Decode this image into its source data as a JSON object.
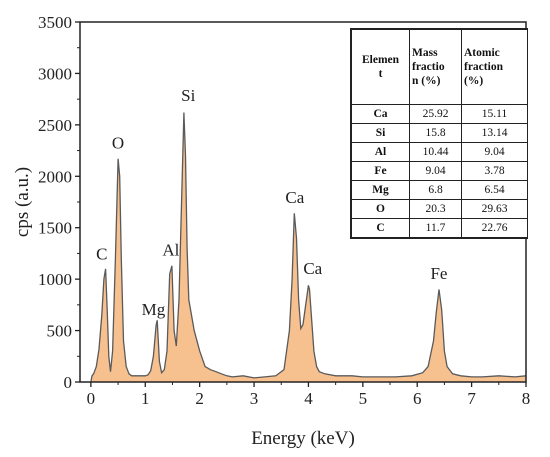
{
  "chart_data": {
    "type": "area",
    "title": "",
    "xlabel": "Energy (keV)",
    "ylabel": "cps (a.u.)",
    "xlim": [
      -0.2,
      8
    ],
    "ylim": [
      0,
      3500
    ],
    "x_ticks": [
      0,
      1,
      2,
      3,
      4,
      5,
      6,
      7,
      8
    ],
    "y_ticks": [
      0,
      500,
      1000,
      1500,
      2000,
      2500,
      3000,
      3500
    ],
    "fill_color": "#f7c08f",
    "line_color": "#5a5a5a",
    "spectrum": {
      "x": [
        0.0,
        0.02,
        0.05,
        0.1,
        0.15,
        0.2,
        0.24,
        0.27,
        0.3,
        0.33,
        0.36,
        0.4,
        0.45,
        0.5,
        0.53,
        0.56,
        0.6,
        0.65,
        0.7,
        0.75,
        0.8,
        0.85,
        0.9,
        0.95,
        1.0,
        1.05,
        1.1,
        1.15,
        1.2,
        1.22,
        1.26,
        1.3,
        1.35,
        1.4,
        1.45,
        1.49,
        1.53,
        1.57,
        1.62,
        1.67,
        1.71,
        1.74,
        1.77,
        1.8,
        1.85,
        1.9,
        2.0,
        2.1,
        2.2,
        2.3,
        2.4,
        2.5,
        2.6,
        2.8,
        3.0,
        3.2,
        3.4,
        3.55,
        3.65,
        3.7,
        3.74,
        3.78,
        3.82,
        3.86,
        3.9,
        3.95,
        4.0,
        4.02,
        4.06,
        4.1,
        4.15,
        4.2,
        4.3,
        4.5,
        4.8,
        5.0,
        5.3,
        5.6,
        5.9,
        6.1,
        6.2,
        6.3,
        6.35,
        6.4,
        6.45,
        6.5,
        6.55,
        6.65,
        6.8,
        7.0,
        7.2,
        7.5,
        7.8,
        8.0
      ],
      "y": [
        0,
        60,
        80,
        150,
        320,
        650,
        1000,
        1100,
        700,
        250,
        100,
        300,
        1200,
        2170,
        2000,
        1200,
        400,
        150,
        80,
        60,
        60,
        60,
        60,
        60,
        60,
        70,
        110,
        250,
        550,
        600,
        200,
        90,
        120,
        300,
        1050,
        1130,
        500,
        350,
        800,
        1800,
        2620,
        2200,
        1300,
        800,
        650,
        500,
        300,
        150,
        120,
        100,
        80,
        60,
        50,
        60,
        40,
        50,
        60,
        120,
        500,
        1000,
        1640,
        1400,
        800,
        520,
        560,
        750,
        940,
        900,
        600,
        300,
        150,
        100,
        80,
        60,
        60,
        50,
        50,
        50,
        60,
        90,
        150,
        400,
        680,
        900,
        700,
        300,
        150,
        80,
        60,
        50,
        50,
        60,
        50,
        60
      ]
    },
    "peak_labels": [
      {
        "text": "C",
        "x": 0.2,
        "y": 1190
      },
      {
        "text": "O",
        "x": 0.5,
        "y": 2270
      },
      {
        "text": "Mg",
        "x": 1.15,
        "y": 650
      },
      {
        "text": "Al",
        "x": 1.47,
        "y": 1230
      },
      {
        "text": "Si",
        "x": 1.79,
        "y": 2730
      },
      {
        "text": "Ca",
        "x": 3.75,
        "y": 1740
      },
      {
        "text": "Ca",
        "x": 4.08,
        "y": 1050
      },
      {
        "text": "Fe",
        "x": 6.4,
        "y": 1000
      }
    ],
    "table": {
      "headers": [
        "Elemen\nt",
        "Mass\nfractio\nn (%)",
        "Atomic\nfraction\n(%)"
      ],
      "rows": [
        [
          "Ca",
          "25.92",
          "15.11"
        ],
        [
          "Si",
          "15.8",
          "13.14"
        ],
        [
          "Al",
          "10.44",
          "9.04"
        ],
        [
          "Fe",
          "9.04",
          "3.78"
        ],
        [
          "Mg",
          "6.8",
          "6.54"
        ],
        [
          "O",
          "20.3",
          "29.63"
        ],
        [
          "C",
          "11.7",
          "22.76"
        ]
      ]
    }
  }
}
